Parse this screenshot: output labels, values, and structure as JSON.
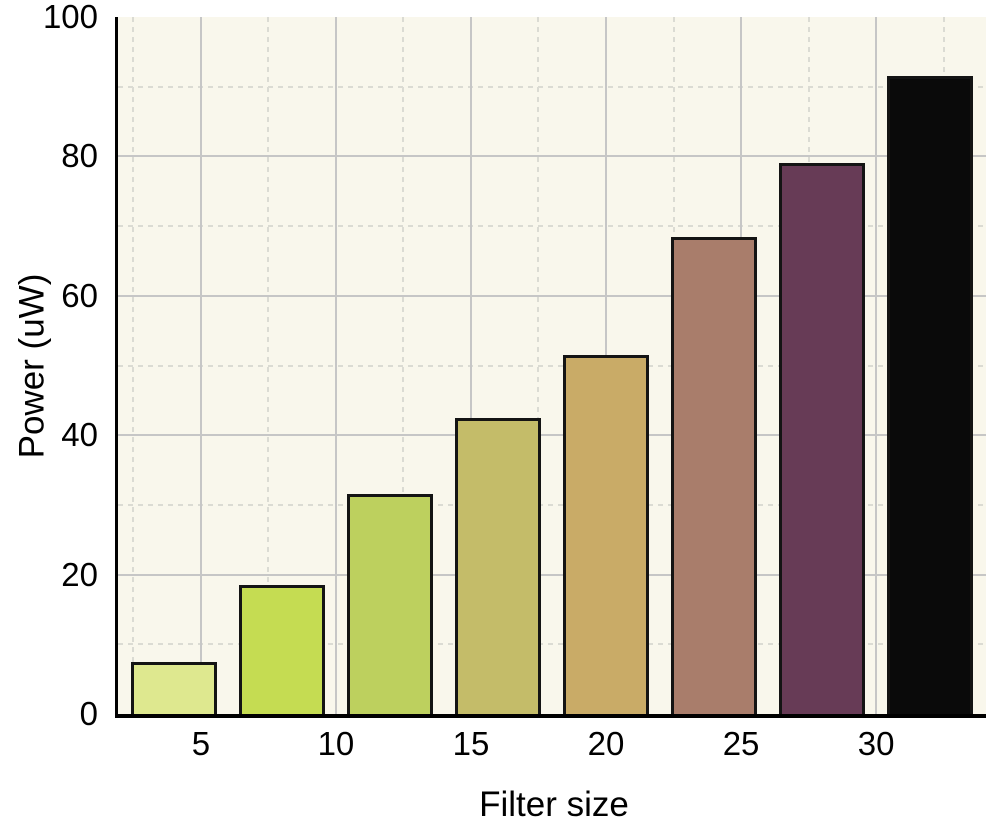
{
  "figure": {
    "background_color": "#ffffff",
    "plot_background_color": "#f9f7ec",
    "axis_color": "#000000",
    "major_grid_color": "#c6c6c6",
    "minor_grid_color": "#dbdbd3",
    "bar_border_color": "#141414",
    "text_color": "#000000"
  },
  "chart_data": {
    "type": "bar",
    "title": "",
    "xlabel": "Filter size",
    "ylabel": "Power (uW)",
    "xlim": [
      1.93,
      34.07
    ],
    "ylim": [
      0,
      100
    ],
    "bar_width": 3.2,
    "grid": "major solid, minor dashed",
    "legend": false,
    "x_tick_labels": [
      "5",
      "10",
      "15",
      "20",
      "25",
      "30"
    ],
    "x_tick_values": [
      5,
      10,
      15,
      20,
      25,
      30
    ],
    "y_tick_labels": [
      "0",
      "20",
      "40",
      "60",
      "80",
      "100"
    ],
    "y_tick_values": [
      0,
      20,
      40,
      60,
      80,
      100
    ],
    "x_major_gridlines": [
      5,
      10,
      15,
      20,
      25,
      30
    ],
    "x_minor_gridlines": [
      2.5,
      7.5,
      12.5,
      17.5,
      22.5,
      27.5,
      32.5
    ],
    "y_major_gridlines": [
      20,
      40,
      60,
      80
    ],
    "y_minor_gridlines": [
      10,
      30,
      50,
      70,
      90
    ],
    "bars": [
      {
        "x": 4,
        "value": 7.5,
        "color": "#dee88f"
      },
      {
        "x": 8,
        "value": 18.5,
        "color": "#c5dc52"
      },
      {
        "x": 12,
        "value": 31.5,
        "color": "#bdd05e"
      },
      {
        "x": 16,
        "value": 42.5,
        "color": "#c4bc69"
      },
      {
        "x": 20,
        "value": 51.5,
        "color": "#c9ab67"
      },
      {
        "x": 24,
        "value": 68.5,
        "color": "#a97d6b"
      },
      {
        "x": 28,
        "value": 79,
        "color": "#673b56"
      },
      {
        "x": 32,
        "value": 91.5,
        "color": "#0a0a0a"
      }
    ]
  }
}
